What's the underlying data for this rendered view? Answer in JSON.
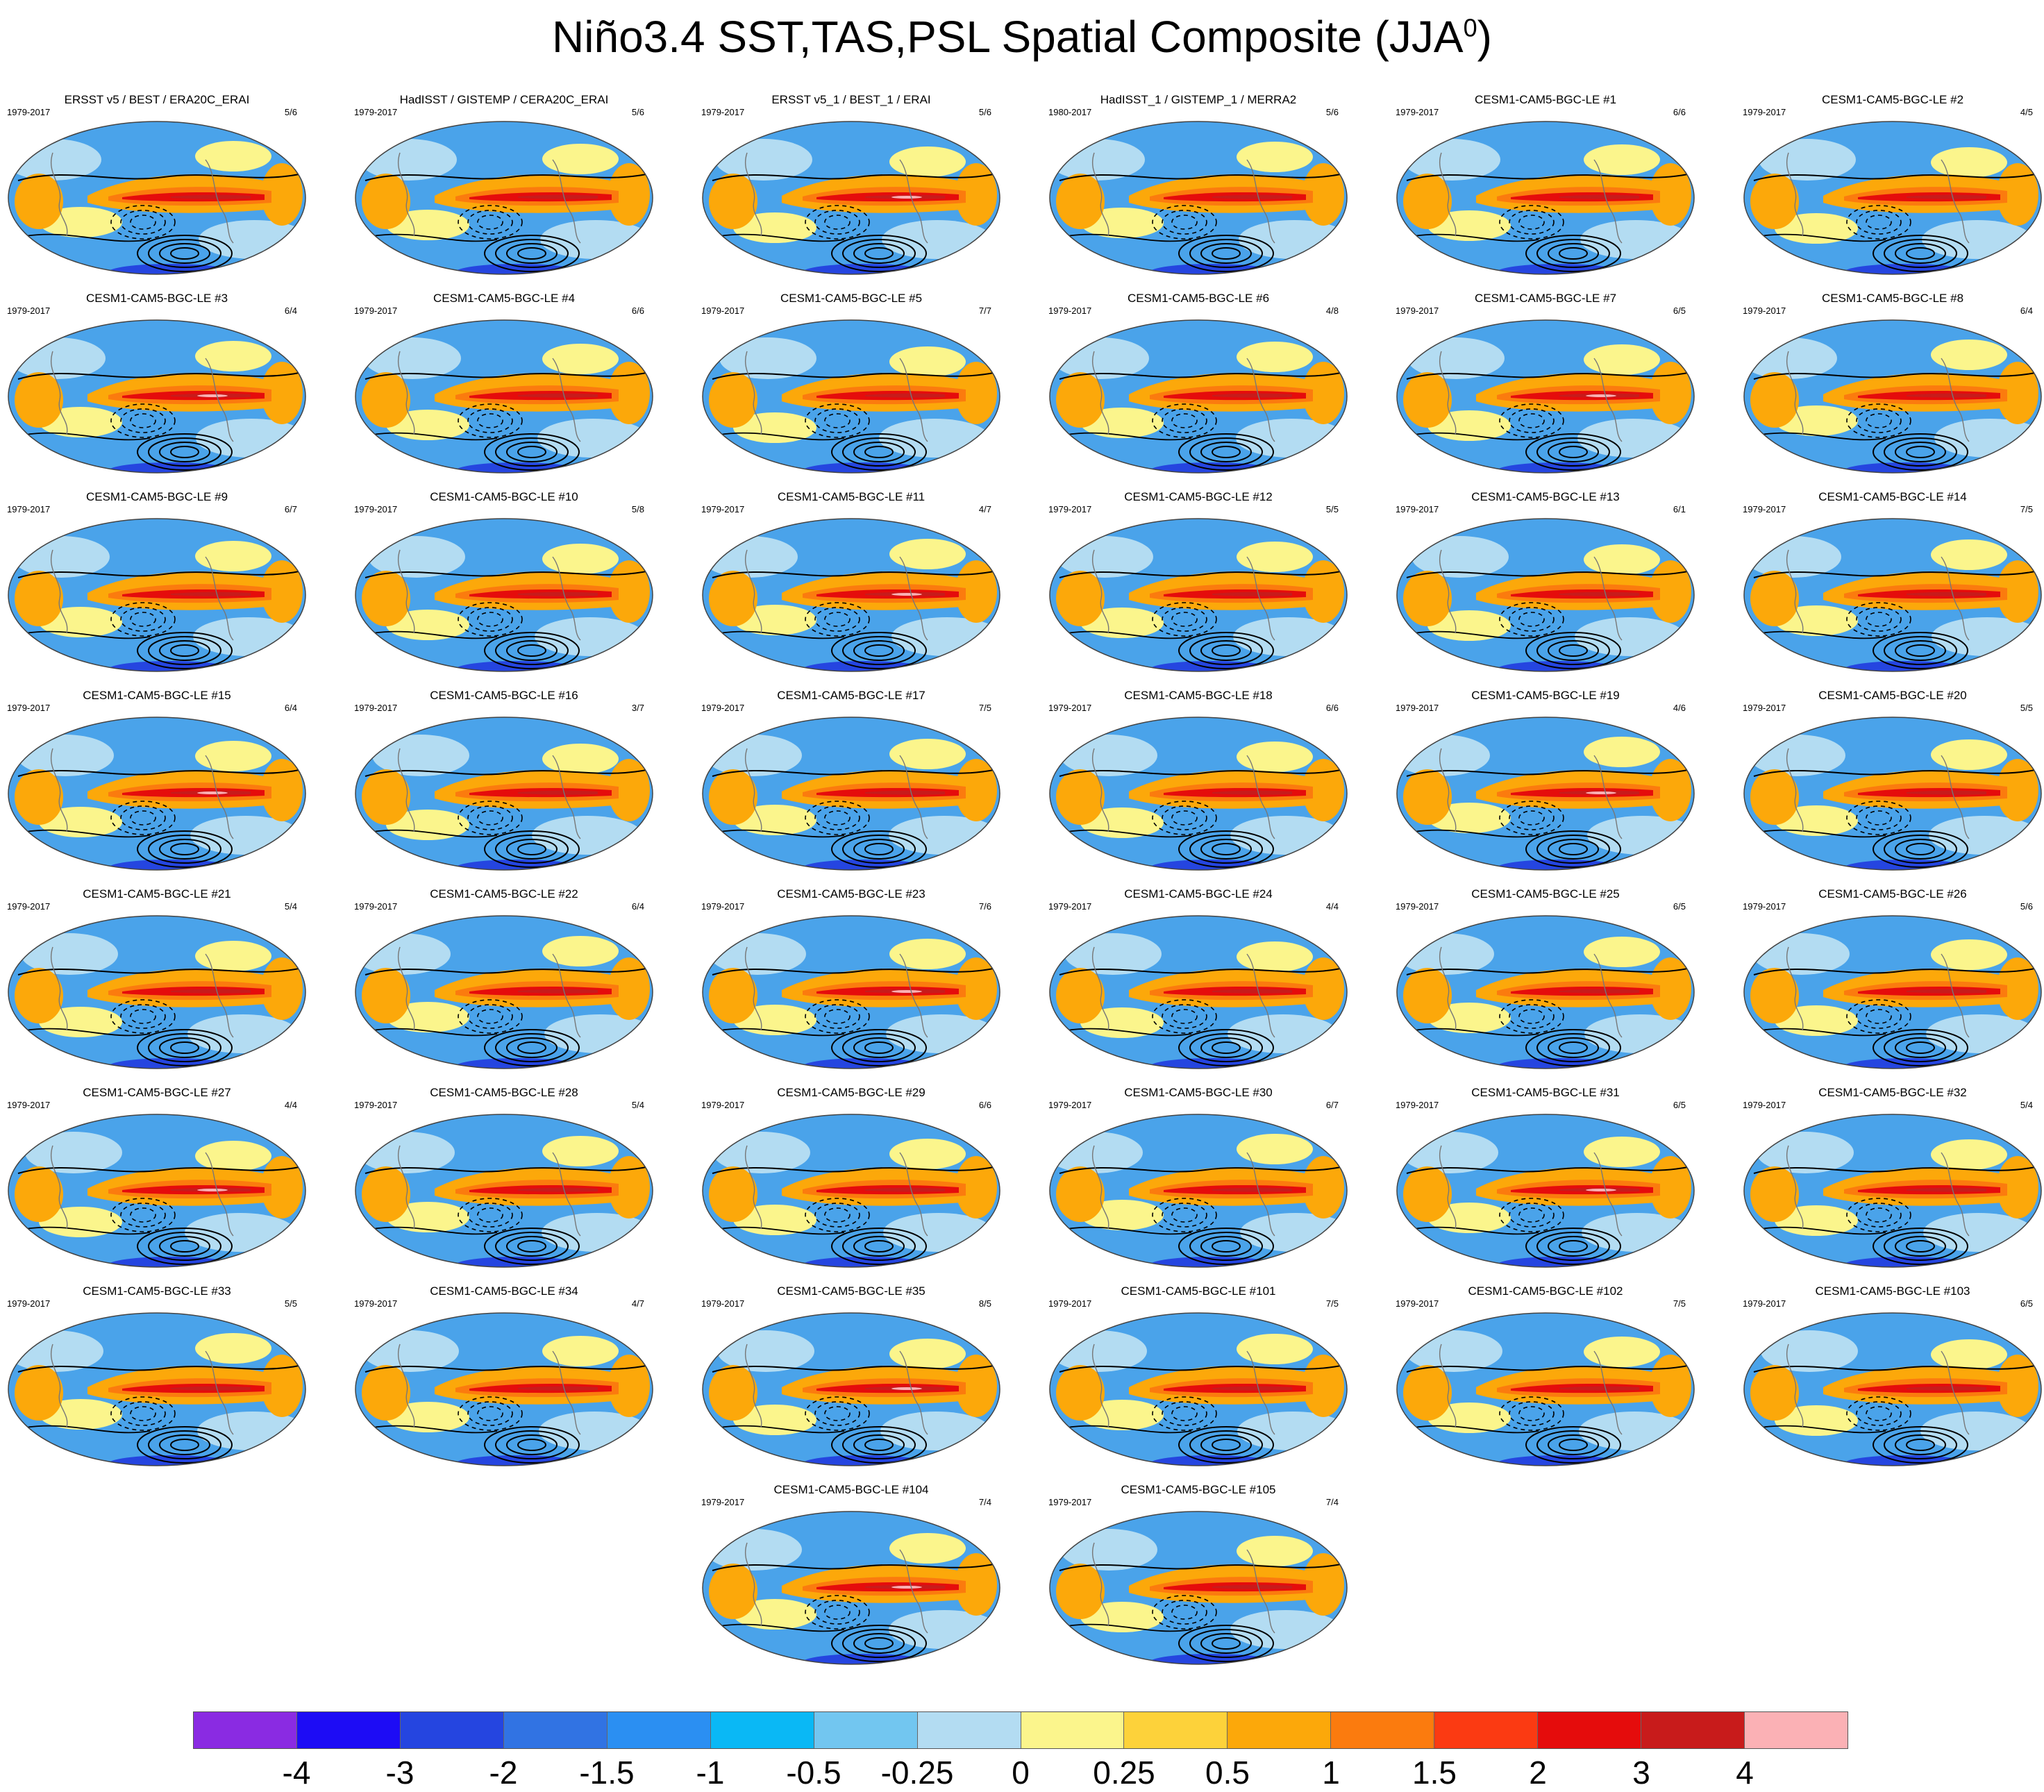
{
  "title": "Niño3.4 SST,TAS,PSL Spatial Composite (JJA",
  "title_sup": "0",
  "title_close": ")",
  "panels": [
    {
      "title": "ERSST v5 / BEST / ERA20C_ERAI",
      "years": "1979-2017",
      "count": "5/6"
    },
    {
      "title": "HadISST / GISTEMP / CERA20C_ERAI",
      "years": "1979-2017",
      "count": "5/6"
    },
    {
      "title": "ERSST v5_1 / BEST_1 / ERAI",
      "years": "1979-2017",
      "count": "5/6"
    },
    {
      "title": "HadISST_1 / GISTEMP_1 / MERRA2",
      "years": "1980-2017",
      "count": "5/6"
    },
    {
      "title": "CESM1-CAM5-BGC-LE #1",
      "years": "1979-2017",
      "count": "6/6"
    },
    {
      "title": "CESM1-CAM5-BGC-LE #2",
      "years": "1979-2017",
      "count": "4/5"
    },
    {
      "title": "CESM1-CAM5-BGC-LE #3",
      "years": "1979-2017",
      "count": "6/4"
    },
    {
      "title": "CESM1-CAM5-BGC-LE #4",
      "years": "1979-2017",
      "count": "6/6"
    },
    {
      "title": "CESM1-CAM5-BGC-LE #5",
      "years": "1979-2017",
      "count": "7/7"
    },
    {
      "title": "CESM1-CAM5-BGC-LE #6",
      "years": "1979-2017",
      "count": "4/8"
    },
    {
      "title": "CESM1-CAM5-BGC-LE #7",
      "years": "1979-2017",
      "count": "6/5"
    },
    {
      "title": "CESM1-CAM5-BGC-LE #8",
      "years": "1979-2017",
      "count": "6/4"
    },
    {
      "title": "CESM1-CAM5-BGC-LE #9",
      "years": "1979-2017",
      "count": "6/7"
    },
    {
      "title": "CESM1-CAM5-BGC-LE #10",
      "years": "1979-2017",
      "count": "5/8"
    },
    {
      "title": "CESM1-CAM5-BGC-LE #11",
      "years": "1979-2017",
      "count": "4/7"
    },
    {
      "title": "CESM1-CAM5-BGC-LE #12",
      "years": "1979-2017",
      "count": "5/5"
    },
    {
      "title": "CESM1-CAM5-BGC-LE #13",
      "years": "1979-2017",
      "count": "6/1"
    },
    {
      "title": "CESM1-CAM5-BGC-LE #14",
      "years": "1979-2017",
      "count": "7/5"
    },
    {
      "title": "CESM1-CAM5-BGC-LE #15",
      "years": "1979-2017",
      "count": "6/4"
    },
    {
      "title": "CESM1-CAM5-BGC-LE #16",
      "years": "1979-2017",
      "count": "3/7"
    },
    {
      "title": "CESM1-CAM5-BGC-LE #17",
      "years": "1979-2017",
      "count": "7/5"
    },
    {
      "title": "CESM1-CAM5-BGC-LE #18",
      "years": "1979-2017",
      "count": "6/6"
    },
    {
      "title": "CESM1-CAM5-BGC-LE #19",
      "years": "1979-2017",
      "count": "4/6"
    },
    {
      "title": "CESM1-CAM5-BGC-LE #20",
      "years": "1979-2017",
      "count": "5/5"
    },
    {
      "title": "CESM1-CAM5-BGC-LE #21",
      "years": "1979-2017",
      "count": "5/4"
    },
    {
      "title": "CESM1-CAM5-BGC-LE #22",
      "years": "1979-2017",
      "count": "6/4"
    },
    {
      "title": "CESM1-CAM5-BGC-LE #23",
      "years": "1979-2017",
      "count": "7/6"
    },
    {
      "title": "CESM1-CAM5-BGC-LE #24",
      "years": "1979-2017",
      "count": "4/4"
    },
    {
      "title": "CESM1-CAM5-BGC-LE #25",
      "years": "1979-2017",
      "count": "6/5"
    },
    {
      "title": "CESM1-CAM5-BGC-LE #26",
      "years": "1979-2017",
      "count": "5/6"
    },
    {
      "title": "CESM1-CAM5-BGC-LE #27",
      "years": "1979-2017",
      "count": "4/4"
    },
    {
      "title": "CESM1-CAM5-BGC-LE #28",
      "years": "1979-2017",
      "count": "5/4"
    },
    {
      "title": "CESM1-CAM5-BGC-LE #29",
      "years": "1979-2017",
      "count": "6/6"
    },
    {
      "title": "CESM1-CAM5-BGC-LE #30",
      "years": "1979-2017",
      "count": "6/7"
    },
    {
      "title": "CESM1-CAM5-BGC-LE #31",
      "years": "1979-2017",
      "count": "6/5"
    },
    {
      "title": "CESM1-CAM5-BGC-LE #32",
      "years": "1979-2017",
      "count": "5/4"
    },
    {
      "title": "CESM1-CAM5-BGC-LE #33",
      "years": "1979-2017",
      "count": "5/5"
    },
    {
      "title": "CESM1-CAM5-BGC-LE #34",
      "years": "1979-2017",
      "count": "4/7"
    },
    {
      "title": "CESM1-CAM5-BGC-LE #35",
      "years": "1979-2017",
      "count": "8/5"
    },
    {
      "title": "CESM1-CAM5-BGC-LE #101",
      "years": "1979-2017",
      "count": "7/5"
    },
    {
      "title": "CESM1-CAM5-BGC-LE #102",
      "years": "1979-2017",
      "count": "7/5"
    },
    {
      "title": "CESM1-CAM5-BGC-LE #103",
      "years": "1979-2017",
      "count": "6/5"
    },
    {
      "title": "CESM1-CAM5-BGC-LE #104",
      "years": "1979-2017",
      "count": "7/4"
    },
    {
      "title": "CESM1-CAM5-BGC-LE #105",
      "years": "1979-2017",
      "count": "7/4"
    }
  ],
  "colorbar": {
    "colors": [
      "#8a2be2",
      "#1d0cf5",
      "#2545e0",
      "#3173e3",
      "#2b8ff2",
      "#0ab8f5",
      "#72c6f0",
      "#b3dcf2",
      "#fbf58c",
      "#fdd23a",
      "#fca80a",
      "#fb7b0e",
      "#fb3a12",
      "#e50c0c",
      "#c81b1b",
      "#fbb1b5"
    ],
    "labels": [
      "-4",
      "-3",
      "-2",
      "-1.5",
      "-1",
      "-0.5",
      "-0.25",
      "0",
      "0.25",
      "0.5",
      "1",
      "1.5",
      "2",
      "3",
      "4"
    ]
  },
  "map_colors": {
    "ocean_base": "#4aa3ea",
    "light_blue": "#b3dcf2",
    "yellow": "#fbf58c",
    "orange": "#fca80a",
    "deep_orange": "#fb7b0e",
    "red": "#e50c0c",
    "dark_red": "#c81b1b",
    "pink": "#fbb1b5",
    "deep_blue": "#2545e0"
  }
}
